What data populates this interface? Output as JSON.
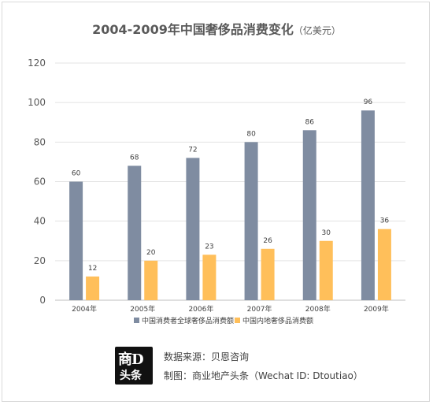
{
  "chart_data": {
    "type": "bar",
    "title": "2004-2009年中国奢侈品消费变化",
    "title_unit": "（亿美元）",
    "categories": [
      "2004年",
      "2005年",
      "2006年",
      "2007年",
      "2008年",
      "2009年"
    ],
    "series": [
      {
        "name": "中国消费者全球奢侈品消费额",
        "values": [
          60,
          68,
          72,
          80,
          86,
          96
        ],
        "color": "#7f8ca1"
      },
      {
        "name": "中国内地奢侈品消费额",
        "values": [
          12,
          20,
          23,
          26,
          30,
          36
        ],
        "color": "#ffbf5a"
      }
    ],
    "yticks": [
      "0",
      "20",
      "40",
      "60",
      "80",
      "100",
      "120"
    ],
    "ylim": [
      0,
      120
    ],
    "grid": true,
    "legend_position": "bottom"
  },
  "footer": {
    "logo_top_a": "商",
    "logo_top_b": "D",
    "logo_bottom": "头条",
    "source_line": "数据来源：贝恩咨询",
    "maker_line": "制图：商业地产头条（Wechat ID: Dtoutiao）"
  }
}
